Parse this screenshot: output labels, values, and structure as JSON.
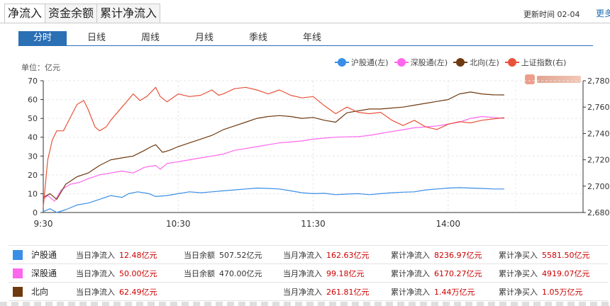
{
  "top_tabs": [
    "净流入",
    "资金余额",
    "累计净流入"
  ],
  "update": {
    "label": "更新时间 02-04",
    "more": "更多"
  },
  "periods": [
    "分时",
    "日线",
    "周线",
    "月线",
    "季线",
    "年线"
  ],
  "unit_label": "单位：亿元",
  "colors": {
    "hgt": "#3a8ee6",
    "sgt": "#ff66ee",
    "north": "#6e3a10",
    "index": "#e8533a",
    "tab_active": "#2b6fb4"
  },
  "chart_data": {
    "type": "line",
    "x_labels": [
      "9:30",
      "10:30",
      "11:30",
      "14:00"
    ],
    "y_left": {
      "min": 0,
      "max": 70,
      "ticks": [
        "0",
        "10",
        "20",
        "30",
        "40",
        "50",
        "60",
        "70"
      ]
    },
    "y_right": {
      "min": 2680,
      "max": 2780,
      "ticks": [
        "2,680",
        "2,700",
        "2,720",
        "2,740",
        "2,760",
        "2,780"
      ]
    },
    "series": [
      {
        "name": "沪股通(左)",
        "axis": "left",
        "color": "#3a8ee6",
        "values": [
          [
            0,
            0.5
          ],
          [
            3,
            2
          ],
          [
            6,
            0
          ],
          [
            10,
            1.5
          ],
          [
            15,
            4
          ],
          [
            20,
            5
          ],
          [
            25,
            7
          ],
          [
            30,
            9
          ],
          [
            35,
            8
          ],
          [
            38,
            10
          ],
          [
            42,
            11
          ],
          [
            47,
            10
          ],
          [
            50,
            8.5
          ],
          [
            55,
            9
          ],
          [
            60,
            10
          ],
          [
            65,
            11
          ],
          [
            70,
            10.5
          ],
          [
            75,
            11
          ],
          [
            80,
            11.5
          ],
          [
            85,
            12
          ],
          [
            90,
            12.5
          ],
          [
            95,
            13
          ],
          [
            100,
            12.8
          ],
          [
            105,
            12.5
          ],
          [
            110,
            11.5
          ],
          [
            115,
            10.5
          ],
          [
            120,
            10
          ],
          [
            125,
            10.2
          ],
          [
            130,
            9.5
          ],
          [
            135,
            9.8
          ],
          [
            140,
            10
          ],
          [
            145,
            9.5
          ],
          [
            150,
            10
          ],
          [
            155,
            10.5
          ],
          [
            160,
            10.8
          ],
          [
            165,
            11
          ],
          [
            170,
            12
          ],
          [
            175,
            12.5
          ],
          [
            180,
            13
          ],
          [
            185,
            13.2
          ],
          [
            190,
            13
          ],
          [
            195,
            12.8
          ],
          [
            200,
            12.5
          ],
          [
            205,
            12.48
          ]
        ]
      },
      {
        "name": "深股通(左)",
        "axis": "left",
        "color": "#ff66ee",
        "values": [
          [
            0,
            7
          ],
          [
            2,
            9
          ],
          [
            5,
            6
          ],
          [
            8,
            12
          ],
          [
            12,
            15
          ],
          [
            16,
            16
          ],
          [
            20,
            18
          ],
          [
            25,
            20
          ],
          [
            30,
            21
          ],
          [
            35,
            22
          ],
          [
            40,
            21
          ],
          [
            45,
            24
          ],
          [
            50,
            25
          ],
          [
            52,
            23
          ],
          [
            55,
            26
          ],
          [
            60,
            27
          ],
          [
            65,
            28
          ],
          [
            70,
            29
          ],
          [
            75,
            30
          ],
          [
            80,
            31
          ],
          [
            85,
            33
          ],
          [
            90,
            34
          ],
          [
            95,
            35
          ],
          [
            100,
            36
          ],
          [
            105,
            37
          ],
          [
            110,
            37.5
          ],
          [
            115,
            38
          ],
          [
            120,
            39
          ],
          [
            125,
            39.5
          ],
          [
            130,
            40
          ],
          [
            135,
            40.2
          ],
          [
            140,
            40.3
          ],
          [
            145,
            41
          ],
          [
            150,
            42
          ],
          [
            155,
            43
          ],
          [
            160,
            44
          ],
          [
            165,
            45
          ],
          [
            170,
            45.5
          ],
          [
            175,
            46
          ],
          [
            180,
            47
          ],
          [
            185,
            48
          ],
          [
            190,
            50
          ],
          [
            195,
            51
          ],
          [
            200,
            50.5
          ],
          [
            205,
            50
          ]
        ]
      },
      {
        "name": "北向(左)",
        "axis": "left",
        "color": "#6e3a10",
        "values": [
          [
            0,
            8
          ],
          [
            3,
            10
          ],
          [
            6,
            7
          ],
          [
            10,
            15
          ],
          [
            15,
            19
          ],
          [
            20,
            21
          ],
          [
            25,
            25
          ],
          [
            30,
            28
          ],
          [
            35,
            29
          ],
          [
            40,
            30
          ],
          [
            45,
            33
          ],
          [
            48,
            35
          ],
          [
            50,
            36
          ],
          [
            53,
            32
          ],
          [
            56,
            33
          ],
          [
            60,
            35
          ],
          [
            65,
            37
          ],
          [
            70,
            39
          ],
          [
            75,
            41
          ],
          [
            80,
            44
          ],
          [
            85,
            46
          ],
          [
            90,
            48
          ],
          [
            95,
            50
          ],
          [
            100,
            51
          ],
          [
            105,
            51.5
          ],
          [
            110,
            51
          ],
          [
            115,
            50
          ],
          [
            120,
            50.5
          ],
          [
            125,
            49
          ],
          [
            130,
            48
          ],
          [
            135,
            53
          ],
          [
            140,
            54
          ],
          [
            145,
            55
          ],
          [
            150,
            55
          ],
          [
            155,
            55.5
          ],
          [
            160,
            56
          ],
          [
            165,
            57
          ],
          [
            170,
            58
          ],
          [
            175,
            59
          ],
          [
            180,
            60
          ],
          [
            185,
            63
          ],
          [
            190,
            64
          ],
          [
            195,
            63
          ],
          [
            200,
            62.5
          ],
          [
            205,
            62.49
          ]
        ]
      },
      {
        "name": "上证指数(右)",
        "axis": "right",
        "color": "#e8533a",
        "values": [
          [
            0,
            2684
          ],
          [
            2,
            2720
          ],
          [
            4,
            2735
          ],
          [
            6,
            2742
          ],
          [
            9,
            2742
          ],
          [
            12,
            2752
          ],
          [
            15,
            2762
          ],
          [
            18,
            2765
          ],
          [
            20,
            2758
          ],
          [
            23,
            2745
          ],
          [
            25,
            2742
          ],
          [
            28,
            2745
          ],
          [
            30,
            2750
          ],
          [
            35,
            2760
          ],
          [
            40,
            2770
          ],
          [
            43,
            2765
          ],
          [
            46,
            2768
          ],
          [
            50,
            2775
          ],
          [
            52,
            2768
          ],
          [
            55,
            2764
          ],
          [
            60,
            2770
          ],
          [
            65,
            2768
          ],
          [
            70,
            2769
          ],
          [
            75,
            2773
          ],
          [
            78,
            2769
          ],
          [
            80,
            2770
          ],
          [
            85,
            2774
          ],
          [
            90,
            2775
          ],
          [
            95,
            2773
          ],
          [
            100,
            2770
          ],
          [
            105,
            2773
          ],
          [
            110,
            2769
          ],
          [
            115,
            2767
          ],
          [
            120,
            2768
          ],
          [
            125,
            2761
          ],
          [
            130,
            2755
          ],
          [
            135,
            2760
          ],
          [
            140,
            2756
          ],
          [
            145,
            2755
          ],
          [
            150,
            2756
          ],
          [
            155,
            2750
          ],
          [
            160,
            2746
          ],
          [
            165,
            2750
          ],
          [
            170,
            2745
          ],
          [
            175,
            2743
          ],
          [
            180,
            2747
          ],
          [
            185,
            2749
          ],
          [
            190,
            2748
          ],
          [
            195,
            2750
          ],
          [
            200,
            2751
          ],
          [
            205,
            2752
          ]
        ]
      }
    ],
    "grid": true
  },
  "summary": [
    {
      "name": "沪股通",
      "color": "#3a8ee6",
      "day_net_label": "当日净流入",
      "day_net": "12.48亿元",
      "balance_label": "当日余额",
      "balance": "507.52亿元",
      "month_label": "当月净流入",
      "month": "162.63亿元",
      "cum_label": "累计净流入",
      "cum": "8236.97亿元",
      "buy_label": "累计净买入",
      "buy": "5581.50亿元"
    },
    {
      "name": "深股通",
      "color": "#ff66ee",
      "day_net_label": "当日净流入",
      "day_net": "50.00亿元",
      "balance_label": "当日余额",
      "balance": "470.00亿元",
      "month_label": "当月净流入",
      "month": "99.18亿元",
      "cum_label": "累计净流入",
      "cum": "6170.27亿元",
      "buy_label": "累计净买入",
      "buy": "4919.07亿元"
    },
    {
      "name": "北向",
      "color": "#6e3a10",
      "day_net_label": "当日净流入",
      "day_net": "62.49亿元",
      "balance_label": "",
      "balance": "",
      "month_label": "当月净流入",
      "month": "261.81亿元",
      "cum_label": "累计净流入",
      "cum": "1.44万亿元",
      "buy_label": "累计净买入",
      "buy": "1.05万亿元"
    }
  ]
}
